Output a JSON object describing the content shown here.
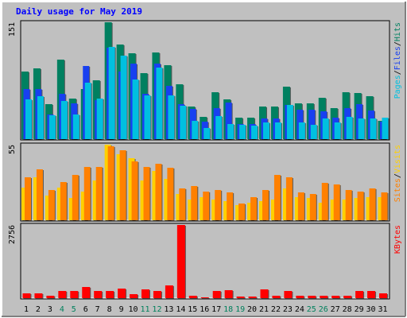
{
  "chart_data": [
    {
      "type": "bar",
      "title": "Daily usage for May 2019",
      "panel": "hits",
      "ymax_label": "151",
      "ylim": [
        0,
        151
      ],
      "legend": [
        {
          "label": "Pages",
          "color": "#00c0e0"
        },
        {
          "label": "Files",
          "color": "#1840f0"
        },
        {
          "label": "Hits",
          "color": "#008060"
        }
      ],
      "legend_sep": "/",
      "categories": [
        "1",
        "2",
        "3",
        "4",
        "5",
        "6",
        "7",
        "8",
        "9",
        "10",
        "11",
        "12",
        "13",
        "14",
        "15",
        "16",
        "17",
        "18",
        "19",
        "20",
        "21",
        "22",
        "23",
        "24",
        "25",
        "26",
        "27",
        "28",
        "29",
        "30",
        "31"
      ],
      "series": [
        {
          "name": "Hits",
          "color": "#008060",
          "values": [
            87,
            91,
            45,
            103,
            52,
            65,
            76,
            151,
            122,
            111,
            85,
            112,
            96,
            71,
            42,
            29,
            61,
            51,
            28,
            28,
            42,
            42,
            68,
            46,
            46,
            53,
            40,
            61,
            60,
            55,
            24
          ]
        },
        {
          "name": "Files",
          "color": "#1840f0",
          "values": [
            65,
            65,
            32,
            59,
            46,
            94,
            50,
            118,
            87,
            98,
            59,
            98,
            69,
            45,
            39,
            23,
            40,
            47,
            20,
            20,
            27,
            27,
            44,
            38,
            38,
            36,
            28,
            40,
            45,
            37,
            23
          ]
        },
        {
          "name": "Pages",
          "color": "#00c0e0",
          "values": [
            51,
            55,
            31,
            49,
            32,
            73,
            52,
            119,
            108,
            77,
            56,
            92,
            57,
            43,
            24,
            14,
            30,
            20,
            18,
            17,
            22,
            22,
            44,
            22,
            19,
            27,
            22,
            29,
            27,
            27,
            28
          ]
        }
      ]
    },
    {
      "type": "bar",
      "panel": "visits",
      "ymax_label": "55",
      "ylim": [
        0,
        55
      ],
      "legend": [
        {
          "label": "Sites",
          "color": "#ff8000"
        },
        {
          "label": "Visits",
          "color": "#ffd000"
        }
      ],
      "legend_sep": "/",
      "categories": [
        "1",
        "2",
        "3",
        "4",
        "5",
        "6",
        "7",
        "8",
        "9",
        "10",
        "11",
        "12",
        "13",
        "14",
        "15",
        "16",
        "17",
        "18",
        "19",
        "20",
        "21",
        "22",
        "23",
        "24",
        "25",
        "26",
        "27",
        "28",
        "29",
        "30",
        "31"
      ],
      "series": [
        {
          "name": "Visits",
          "color": "#ffd000",
          "values": [
            24,
            31,
            18,
            24,
            16,
            21,
            29,
            55,
            48,
            45,
            29,
            36,
            30,
            19,
            15,
            17,
            15,
            14,
            11,
            13,
            14,
            15,
            23,
            17,
            16,
            13,
            15,
            15,
            16,
            17,
            17
          ]
        },
        {
          "name": "Sites",
          "color": "#ff8000",
          "values": [
            31,
            37,
            22,
            28,
            33,
            39,
            39,
            54,
            51,
            43,
            39,
            41,
            38,
            23,
            25,
            21,
            22,
            20,
            12,
            17,
            22,
            33,
            31,
            20,
            19,
            27,
            26,
            22,
            21,
            23,
            20
          ]
        }
      ]
    },
    {
      "type": "bar",
      "panel": "kbytes",
      "ymax_label": "2756",
      "ylim": [
        0,
        2756
      ],
      "legend": [
        {
          "label": "KBytes",
          "color": "#ff0000"
        }
      ],
      "categories": [
        "1",
        "2",
        "3",
        "4",
        "5",
        "6",
        "7",
        "8",
        "9",
        "10",
        "11",
        "12",
        "13",
        "14",
        "15",
        "16",
        "17",
        "18",
        "19",
        "20",
        "21",
        "22",
        "23",
        "24",
        "25",
        "26",
        "27",
        "28",
        "29",
        "30",
        "31"
      ],
      "series": [
        {
          "name": "KBytes",
          "color": "#ff0000",
          "values": [
            190,
            190,
            100,
            270,
            270,
            420,
            270,
            270,
            360,
            140,
            320,
            270,
            490,
            2756,
            100,
            30,
            270,
            290,
            70,
            60,
            320,
            90,
            270,
            90,
            100,
            100,
            90,
            100,
            270,
            270,
            180
          ]
        }
      ]
    }
  ],
  "x_labels": {
    "days": [
      "1",
      "2",
      "3",
      "4",
      "5",
      "6",
      "7",
      "8",
      "9",
      "10",
      "11",
      "12",
      "13",
      "14",
      "15",
      "16",
      "17",
      "18",
      "19",
      "20",
      "21",
      "22",
      "23",
      "24",
      "25",
      "26",
      "27",
      "28",
      "29",
      "30",
      "31"
    ],
    "weekend_days": [
      "4",
      "5",
      "11",
      "12",
      "18",
      "19",
      "25",
      "26"
    ],
    "weekday_color": "#000000",
    "weekend_color": "#00805c"
  },
  "colors": {
    "background": "#c0c0c0",
    "title": "#0000ff",
    "y_max_label": "#000000"
  }
}
